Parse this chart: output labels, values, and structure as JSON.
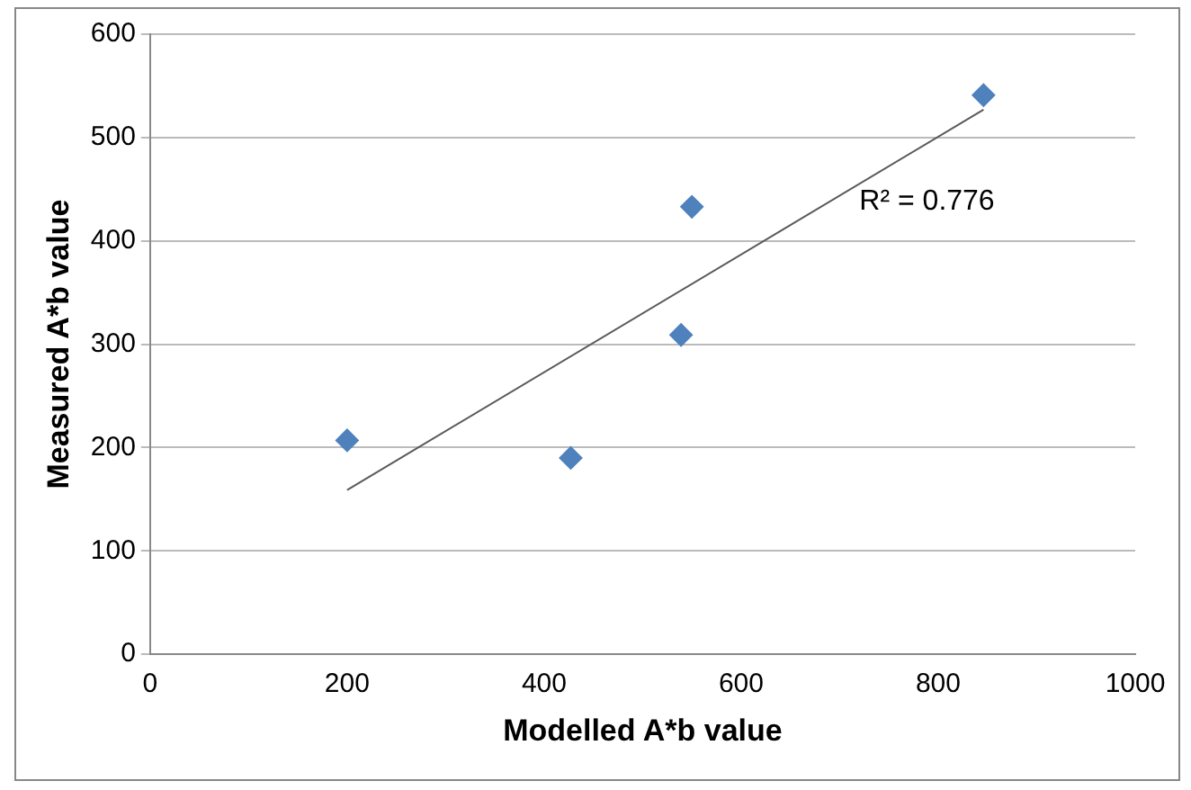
{
  "chart_data": {
    "type": "scatter",
    "xlabel": "Modelled A*b value",
    "ylabel": "Measured A*b value",
    "xlim": [
      0,
      1000
    ],
    "xticks": [
      0,
      200,
      400,
      600,
      800,
      1000
    ],
    "ylim": [
      0,
      600
    ],
    "yticks": [
      0,
      100,
      200,
      300,
      400,
      500,
      600
    ],
    "series": [
      {
        "color": "#4f81bd",
        "marker": "diamond",
        "x": [
          200,
          427,
          539,
          550,
          846
        ],
        "values": [
          207,
          190,
          309,
          433,
          541
        ]
      },
      {
        "type": "line",
        "marker": "none",
        "color": "#595959",
        "x": [
          200,
          846
        ],
        "values": [
          159,
          527
        ]
      }
    ],
    "annotations": [
      "R² = 0.776"
    ],
    "grid": "y",
    "legend": false
  }
}
